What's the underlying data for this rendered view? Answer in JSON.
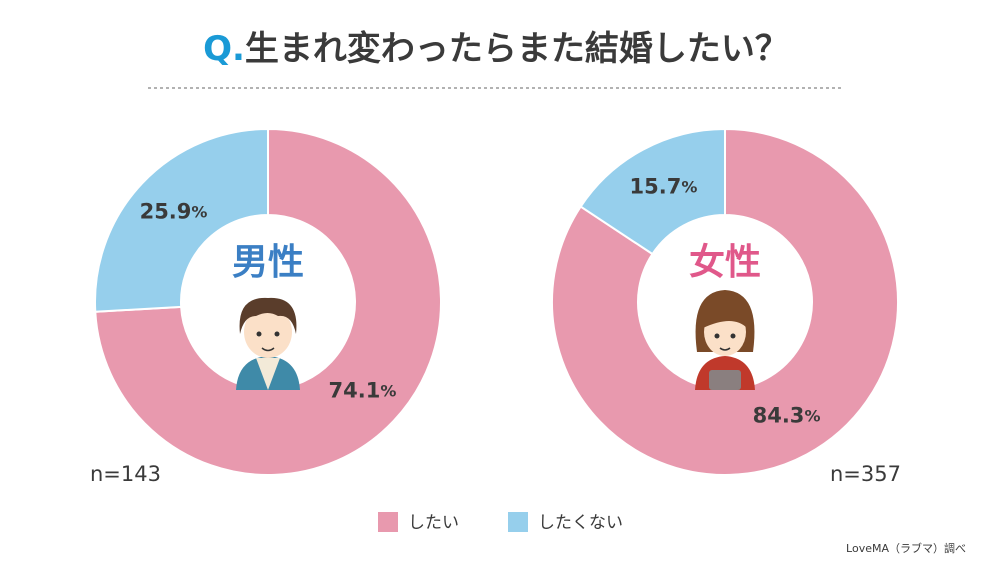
{
  "title": "Q.生まれ変わったらまた結婚したい？",
  "source": "LoveMA（ラブマ）調べ",
  "chart_data": [
    {
      "type": "donut",
      "label": "男性",
      "n": "n=143",
      "categories": [
        "したい",
        "したくない"
      ],
      "values": [
        74.1,
        25.9
      ],
      "value_labels": [
        "74.1%",
        "25.9%"
      ],
      "colors": [
        "#e899ae",
        "#96cfec"
      ],
      "legend": "bottom"
    },
    {
      "type": "donut",
      "label": "女性",
      "n": "n=357",
      "categories": [
        "したい",
        "したくない"
      ],
      "values": [
        84.3,
        15.7
      ],
      "value_labels": [
        "84.3%",
        "15.7%"
      ],
      "colors": [
        "#e899ae",
        "#96cfec"
      ]
    }
  ]
}
